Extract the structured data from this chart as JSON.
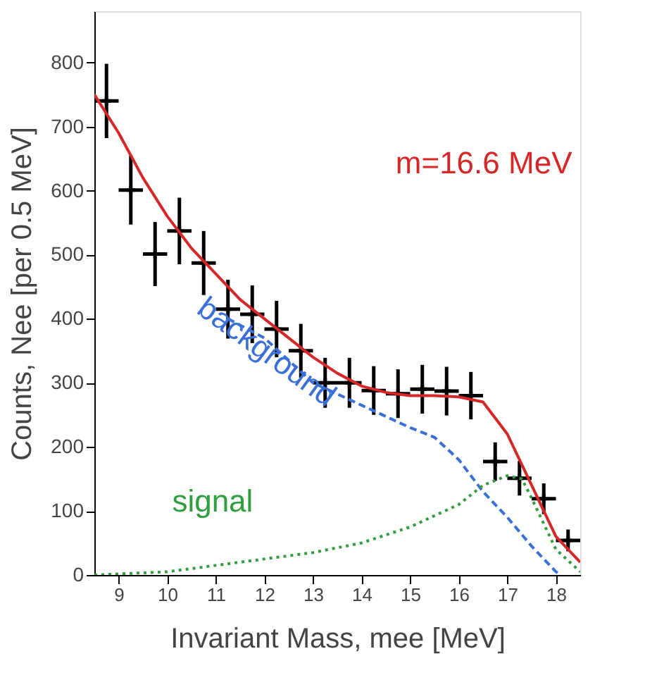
{
  "chart_data": {
    "type": "line",
    "xlabel": "Invariant Mass, mee [MeV]",
    "ylabel": "Counts, Nee [per 0.5 MeV]",
    "xlim": [
      8.5,
      18.5
    ],
    "xticks": [
      9,
      10,
      11,
      12,
      13,
      14,
      15,
      16,
      17,
      18
    ],
    "ylim": [
      0,
      880
    ],
    "yticks": [
      0,
      100,
      200,
      300,
      400,
      500,
      600,
      700,
      800
    ],
    "grid": false,
    "series": [
      {
        "type": "scatter",
        "color": "#000000",
        "marker": "cross",
        "x": [
          8.75,
          9.25,
          9.75,
          10.25,
          10.75,
          11.25,
          11.75,
          12.25,
          12.75,
          13.25,
          13.75,
          14.25,
          14.75,
          15.25,
          15.75,
          16.25,
          16.75,
          17.25,
          17.75,
          18.25
        ],
        "values": [
          740,
          601,
          501,
          537,
          487,
          415,
          407,
          384,
          350,
          300,
          300,
          288,
          283,
          290,
          287,
          280,
          177,
          151,
          119,
          54
        ],
        "errors": [
          58,
          54,
          50,
          52,
          50,
          46,
          45,
          44,
          42,
          39,
          39,
          38,
          38,
          38,
          38,
          37,
          30,
          27,
          24,
          17
        ],
        "xerrors": [
          0.25,
          0.25,
          0.25,
          0.25,
          0.25,
          0.25,
          0.25,
          0.25,
          0.25,
          0.25,
          0.25,
          0.25,
          0.25,
          0.25,
          0.25,
          0.25,
          0.25,
          0.25,
          0.25,
          0.25
        ]
      },
      {
        "name": "m=16.6 MeV",
        "color": "#d62728",
        "line_style": "solid",
        "x": [
          8.5,
          9,
          9.5,
          10,
          10.5,
          11,
          11.5,
          12,
          12.5,
          13,
          13.5,
          14,
          14.5,
          15,
          15.5,
          16,
          16.5,
          17,
          17.5,
          18,
          18.5
        ],
        "values": [
          750,
          690,
          620,
          560,
          510,
          470,
          430,
          400,
          370,
          340,
          315,
          295,
          285,
          280,
          280,
          278,
          270,
          220,
          140,
          60,
          20
        ]
      },
      {
        "name": "background",
        "color": "#3a6fd8",
        "line_style": "dashed",
        "x": [
          11.25,
          12,
          13,
          14,
          15,
          15.5,
          16,
          16.5,
          17,
          17.5,
          18,
          18.1
        ],
        "values": [
          400,
          370,
          300,
          265,
          230,
          215,
          180,
          130,
          90,
          45,
          5,
          0
        ]
      },
      {
        "name": "signal",
        "color": "#2e9e3e",
        "line_style": "dotted",
        "x": [
          8.5,
          10,
          11,
          12,
          13,
          14,
          15,
          16,
          16.5,
          17,
          17.3,
          17.5,
          18,
          18.5
        ],
        "values": [
          0,
          5,
          15,
          25,
          35,
          50,
          75,
          110,
          140,
          155,
          150,
          120,
          40,
          5
        ]
      }
    ]
  }
}
